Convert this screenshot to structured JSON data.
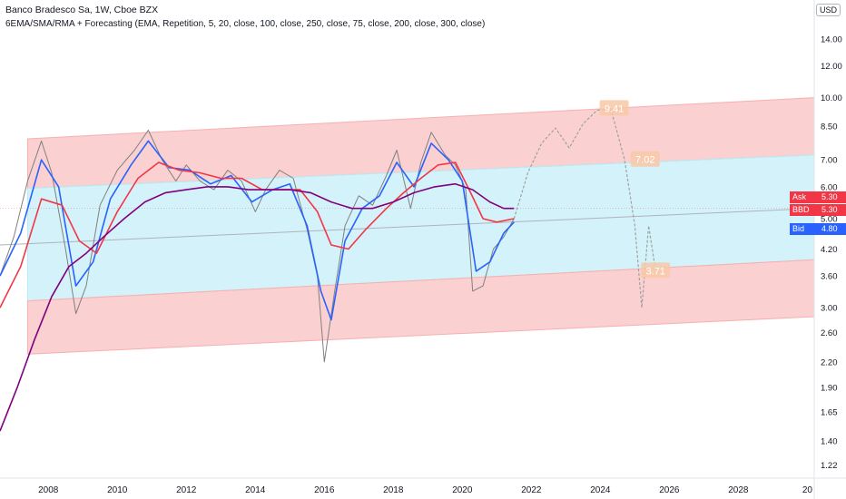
{
  "legend": {
    "line1": "Banco Bradesco Sa, 1W, Cboe BZX",
    "line2": "6EMA/SMA/RMA + Forecasting (EMA, Repetition, 5, 20, close, 100, close, 250, close, 75, close, 200, close, 300, close)"
  },
  "currency_button": "USD",
  "price_tags": {
    "ask": {
      "label": "Ask",
      "value": "5.30",
      "color": "#f23645"
    },
    "bbd": {
      "label": "BBD",
      "value": "5.30",
      "color": "#f23645"
    },
    "bid": {
      "label": "Bid",
      "value": "4.80",
      "color": "#2962ff"
    }
  },
  "chart_data": {
    "type": "line",
    "x_ticks": [
      "2008",
      "2010",
      "2012",
      "2014",
      "2016",
      "2018",
      "2020",
      "2022",
      "2024",
      "2026",
      "2028",
      "20"
    ],
    "y_ticks": [
      "14.00",
      "12.00",
      "10.00",
      "8.50",
      "7.00",
      "6.00",
      "5.00",
      "4.20",
      "3.60",
      "3.00",
      "2.60",
      "2.20",
      "1.90",
      "1.65",
      "1.40",
      "1.22"
    ],
    "y_scale": "log",
    "xlim": [
      2006.6,
      2030.2
    ],
    "ylim": [
      1.13,
      17.5
    ],
    "forecast_labels": [
      {
        "text": "9.41",
        "x": 2024.4,
        "y": 9.41
      },
      {
        "text": "7.02",
        "x": 2025.3,
        "y": 7.02
      },
      {
        "text": "3.71",
        "x": 2025.6,
        "y": 3.71
      }
    ],
    "channel": {
      "upper_zone": {
        "x": [
          2007.4,
          2030.2
        ],
        "top": [
          7.9,
          10.0
        ],
        "bottom": [
          5.95,
          7.2
        ],
        "color": "#f7b0b0"
      },
      "middle_zone": {
        "x": [
          2007.4,
          2030.2
        ],
        "top": [
          5.95,
          7.2
        ],
        "bottom": [
          3.12,
          3.95
        ],
        "color": "#b8eaf5"
      },
      "lower_zone": {
        "x": [
          2007.4,
          2030.2
        ],
        "top": [
          3.12,
          3.95
        ],
        "bottom": [
          2.3,
          2.85
        ],
        "color": "#f7b0b0"
      }
    },
    "series": [
      {
        "color": "#808080",
        "kind": "price",
        "x": [
          2006.6,
          2007.0,
          2007.4,
          2007.8,
          2008.1,
          2008.5,
          2008.8,
          2009.1,
          2009.5,
          2010.0,
          2010.5,
          2010.9,
          2011.3,
          2011.7,
          2012.0,
          2012.4,
          2012.8,
          2013.2,
          2013.6,
          2014.0,
          2014.3,
          2014.7,
          2015.1,
          2015.5,
          2015.8,
          2016.0,
          2016.3,
          2016.6,
          2017.0,
          2017.4,
          2017.8,
          2018.1,
          2018.5,
          2018.8,
          2019.1,
          2019.5,
          2019.8,
          2020.1,
          2020.3,
          2020.6,
          2020.9,
          2021.2,
          2021.5
        ],
        "values": [
          3.6,
          4.5,
          6.2,
          7.8,
          6.5,
          4.2,
          2.9,
          3.4,
          5.4,
          6.6,
          7.4,
          8.3,
          7.0,
          6.2,
          6.8,
          6.2,
          5.9,
          6.6,
          6.2,
          5.2,
          5.9,
          6.6,
          6.3,
          4.7,
          3.6,
          2.2,
          3.3,
          4.8,
          5.7,
          5.4,
          6.4,
          7.4,
          5.3,
          6.9,
          8.2,
          7.2,
          6.8,
          5.9,
          3.3,
          3.4,
          4.2,
          4.5,
          5.0
        ]
      },
      {
        "color": "#2962ff",
        "name": "",
        "x": [
          2006.6,
          2007.2,
          2007.8,
          2008.3,
          2008.8,
          2009.3,
          2009.8,
          2010.4,
          2010.9,
          2011.5,
          2012.1,
          2012.7,
          2013.3,
          2013.9,
          2014.5,
          2015.0,
          2015.5,
          2015.9,
          2016.2,
          2016.6,
          2017.1,
          2017.6,
          2018.1,
          2018.6,
          2019.1,
          2019.6,
          2020.0,
          2020.4,
          2020.8,
          2021.2,
          2021.5
        ],
        "values": [
          3.6,
          4.6,
          7.0,
          6.0,
          3.4,
          3.9,
          5.6,
          6.8,
          7.8,
          6.7,
          6.6,
          6.1,
          6.4,
          5.5,
          5.9,
          6.1,
          4.8,
          3.3,
          2.8,
          4.4,
          5.3,
          5.7,
          6.9,
          6.0,
          7.7,
          7.0,
          6.2,
          3.7,
          3.9,
          4.6,
          4.9
        ]
      },
      {
        "color": "#f23645",
        "name": "",
        "x": [
          2006.6,
          2007.2,
          2007.8,
          2008.4,
          2008.9,
          2009.4,
          2010.0,
          2010.6,
          2011.2,
          2011.8,
          2012.4,
          2013.0,
          2013.6,
          2014.2,
          2014.8,
          2015.3,
          2015.8,
          2016.2,
          2016.7,
          2017.2,
          2017.8,
          2018.3,
          2018.8,
          2019.3,
          2019.8,
          2020.2,
          2020.6,
          2021.0,
          2021.5
        ],
        "values": [
          3.0,
          3.8,
          5.6,
          5.4,
          4.4,
          4.1,
          5.2,
          6.3,
          6.9,
          6.6,
          6.5,
          6.3,
          6.3,
          5.9,
          5.9,
          5.9,
          5.2,
          4.3,
          4.2,
          4.7,
          5.3,
          5.8,
          6.3,
          6.8,
          6.9,
          5.9,
          5.0,
          4.9,
          5.0
        ]
      },
      {
        "color": "#800080",
        "name": "",
        "x": [
          2006.6,
          2007.1,
          2007.6,
          2008.1,
          2008.6,
          2009.1,
          2009.6,
          2010.2,
          2010.8,
          2011.4,
          2012.0,
          2012.6,
          2013.2,
          2013.8,
          2014.4,
          2015.0,
          2015.6,
          2016.2,
          2016.8,
          2017.4,
          2018.0,
          2018.6,
          2019.2,
          2019.8,
          2020.3,
          2020.8,
          2021.2,
          2021.5
        ],
        "values": [
          1.48,
          1.9,
          2.5,
          3.2,
          3.8,
          4.1,
          4.5,
          5.0,
          5.5,
          5.8,
          5.9,
          6.0,
          6.0,
          5.9,
          5.9,
          5.9,
          5.8,
          5.5,
          5.3,
          5.3,
          5.5,
          5.8,
          6.0,
          6.1,
          5.9,
          5.5,
          5.3,
          5.3
        ]
      },
      {
        "color": "#a0a0a0",
        "kind": "forecast",
        "x": [
          2021.5,
          2021.9,
          2022.3,
          2022.7,
          2023.1,
          2023.5,
          2023.9,
          2024.3,
          2024.7,
          2025.0,
          2025.2,
          2025.4,
          2025.6
        ],
        "values": [
          5.0,
          6.5,
          7.7,
          8.4,
          7.5,
          8.6,
          9.3,
          9.41,
          7.02,
          4.8,
          3.0,
          4.8,
          3.71
        ]
      }
    ],
    "trend_line": {
      "x": [
        2006.6,
        2030.2
      ],
      "values": [
        4.3,
        5.3
      ],
      "color": "#b0b3bb"
    },
    "current_price_line": {
      "value": 5.3,
      "color": "#f23645"
    }
  }
}
